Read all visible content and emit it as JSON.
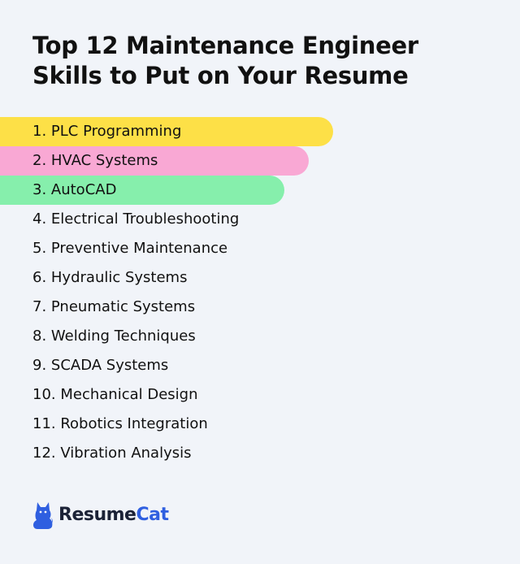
{
  "title": "Top 12 Maintenance Engineer Skills to Put on Your Resume",
  "skills": [
    {
      "label": "1. PLC Programming",
      "highlight": "#fde047"
    },
    {
      "label": "2. HVAC Systems",
      "highlight": "#f9a8d4"
    },
    {
      "label": "3. AutoCAD",
      "highlight": "#86efac"
    },
    {
      "label": "4. Electrical Troubleshooting"
    },
    {
      "label": "5. Preventive Maintenance"
    },
    {
      "label": "6. Hydraulic Systems"
    },
    {
      "label": "7. Pneumatic Systems"
    },
    {
      "label": "8. Welding Techniques"
    },
    {
      "label": "9. SCADA Systems"
    },
    {
      "label": "10. Mechanical Design"
    },
    {
      "label": "11. Robotics Integration"
    },
    {
      "label": "12. Vibration Analysis"
    }
  ],
  "logo": {
    "text_part1": "Resume",
    "text_part2": "Cat",
    "icon": "cat-icon",
    "colors": {
      "primary": "#2f5fe0",
      "dark": "#1b2236"
    }
  },
  "colors": {
    "background": "#f1f4f9",
    "text": "#111111"
  }
}
